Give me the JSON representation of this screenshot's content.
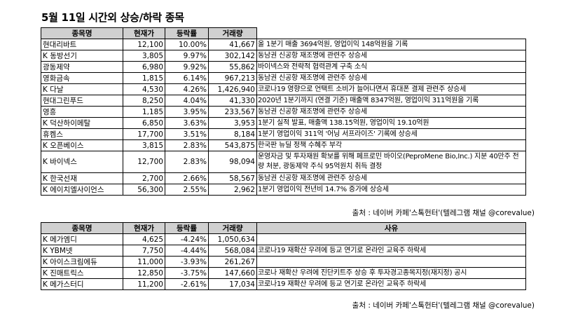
{
  "title": "5월 11일  시간외 상승/하락 종목",
  "headers_up": [
    "종목명",
    "현재가",
    "등락률",
    "거래량",
    ""
  ],
  "rows_up": [
    {
      "name": "현대리바트",
      "price": "12,100",
      "rate": "10.00%",
      "volume": "41,667",
      "reason": "올 1분기 매출 3694억원, 영업이익 148억원을 기록"
    },
    {
      "name": "K 동방선기",
      "price": "3,805",
      "rate": "9.97%",
      "volume": "302,142",
      "reason": "동남권 신공항 재조명에 관련주 상승세"
    },
    {
      "name": "광동제약",
      "price": "6,980",
      "rate": "9.92%",
      "volume": "55,862",
      "reason": "바이넥스와 전략적 협력관계 구축 소식"
    },
    {
      "name": "영화금속",
      "price": "1,815",
      "rate": "6.14%",
      "volume": "967,213",
      "reason": "동남권 신공항 재조명에 관련주 상승세"
    },
    {
      "name": "K 다날",
      "price": "4,530",
      "rate": "4.26%",
      "volume": "1,426,940",
      "reason": "코로나19 영향으로 언택트 소비가 늘어나면서 휴대폰 결제 관련주 상승세"
    },
    {
      "name": "현대그린푸드",
      "price": "8,250",
      "rate": "4.04%",
      "volume": "41,330",
      "reason": "2020년 1분기까지 (연결 기준) 매출액 8347억원, 영업이익 311억원을 기록"
    },
    {
      "name": "영흥",
      "price": "1,185",
      "rate": "3.95%",
      "volume": "233,567",
      "reason": "동남권 신공항 재조명에 관련주 상승세"
    },
    {
      "name": "K 덕산하이메탈",
      "price": "6,850",
      "rate": "3.63%",
      "volume": "3,953",
      "reason": "1분기 실적 발표, 매출액 138.15억원, 영업이익 19.10억원"
    },
    {
      "name": "휴켐스",
      "price": "17,700",
      "rate": "3.51%",
      "volume": "8,184",
      "reason": "1분기 영업이익 311억 '어닝 서프라이즈' 기록에 상승세"
    },
    {
      "name": "K 오픈베이스",
      "price": "3,815",
      "rate": "2.83%",
      "volume": "543,875",
      "reason": "한국판 뉴딜 정책 수혜주 부각"
    },
    {
      "name": "K 바이넥스",
      "price": "12,700",
      "rate": "2.83%",
      "volume": "98,094",
      "reason": "운영자금 및 투자재원 확보를 위해 페프로민 바이오(PeproMene Bio,Inc.) 지분 40만주 전량 처분, 광동제약 주식 95억원치 취득 결정",
      "tall": true
    },
    {
      "name": "K 한국선재",
      "price": "2,700",
      "rate": "2.66%",
      "volume": "58,567",
      "reason": "동남권 신공항 재조명에 관련주 상승세"
    },
    {
      "name": "K 에이치엘사이언스",
      "price": "56,300",
      "rate": "2.55%",
      "volume": "2,962",
      "reason": "1분기 영업이익 전년비 14.7% 증가에 상승세"
    }
  ],
  "source1": "출처 : 네이버 카페'스톡헌터'(텔레그램 채널 @corevalue)",
  "headers_down": [
    "종목명",
    "현재가",
    "등락률",
    "거래량",
    "사유"
  ],
  "rows_down": [
    {
      "name": "K 메가엠디",
      "price": "4,625",
      "rate": "-4.24%",
      "volume": "1,050,634",
      "reason": ""
    },
    {
      "name": "K YBM넷",
      "price": "7,750",
      "rate": "-4.44%",
      "volume": "568,084",
      "reason": "코로나19 재확산 우려에 등교 연기로 온라인 교육주 하락세"
    },
    {
      "name": "K 아이스크림에듀",
      "price": "11,000",
      "rate": "-3.93%",
      "volume": "261,267",
      "reason": ""
    },
    {
      "name": "K 진매트릭스",
      "price": "12,850",
      "rate": "-3.75%",
      "volume": "147,660",
      "reason": "코로나 재확산 우려에 진단키트주 상승 후 투자경고종목지정(재지정) 공시"
    },
    {
      "name": "K 메가스터디",
      "price": "11,200",
      "rate": "-2.61%",
      "volume": "17,034",
      "reason": "코로나19 재확산 우려에 등교 연기로 온라인 교육주 하락세"
    }
  ],
  "source2": "출처 : 네이버 카페'스톡헌터'(텔레그램 채널 @corevalue)"
}
